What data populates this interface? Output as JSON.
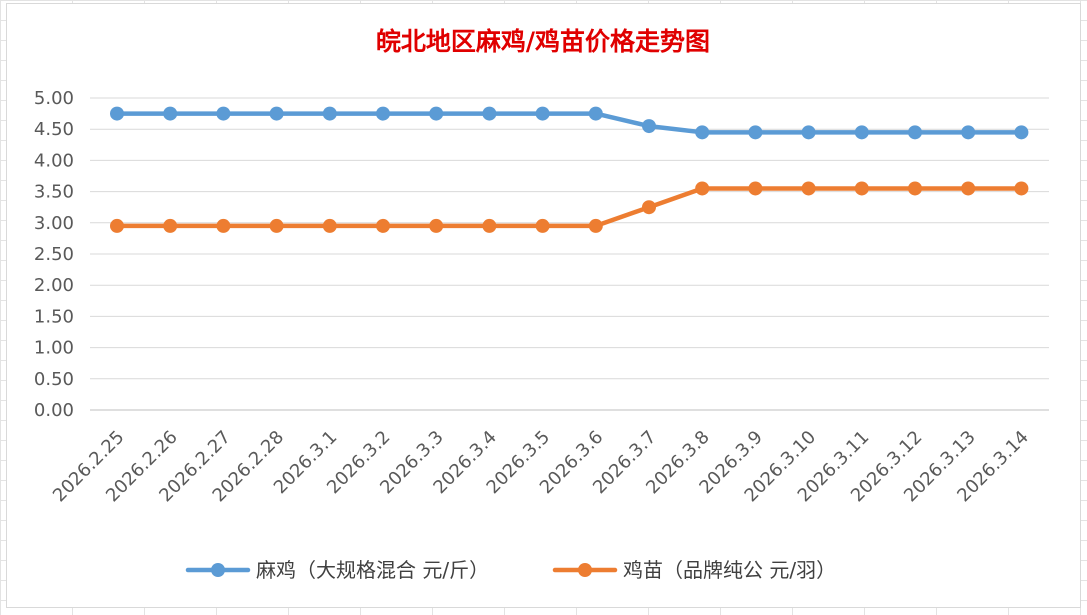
{
  "chart_data": {
    "type": "line",
    "title": "皖北地区麻鸡/鸡苗价格走势图",
    "categories": [
      "2026.2.25",
      "2026.2.26",
      "2026.2.27",
      "2026.2.28",
      "2026.3.1",
      "2026.3.2",
      "2026.3.3",
      "2026.3.4",
      "2026.3.5",
      "2026.3.6",
      "2026.3.7",
      "2026.3.8",
      "2026.3.9",
      "2026.3.10",
      "2026.3.11",
      "2026.3.12",
      "2026.3.13",
      "2026.3.14"
    ],
    "y_ticks": [
      "0.00",
      "0.50",
      "1.00",
      "1.50",
      "2.00",
      "2.50",
      "3.00",
      "3.50",
      "4.00",
      "4.50",
      "5.00"
    ],
    "ylim": [
      0,
      5
    ],
    "grid": "horizontal",
    "legend_position": "bottom",
    "series": [
      {
        "name": "麻鸡（大规格混合 元/斤）",
        "color": "#5b9bd5",
        "values": [
          4.75,
          4.75,
          4.75,
          4.75,
          4.75,
          4.75,
          4.75,
          4.75,
          4.75,
          4.75,
          4.55,
          4.45,
          4.45,
          4.45,
          4.45,
          4.45,
          4.45,
          4.45
        ]
      },
      {
        "name": "鸡苗（品牌纯公 元/羽）",
        "color": "#ed7d31",
        "values": [
          2.95,
          2.95,
          2.95,
          2.95,
          2.95,
          2.95,
          2.95,
          2.95,
          2.95,
          2.95,
          3.25,
          3.55,
          3.55,
          3.55,
          3.55,
          3.55,
          3.55,
          3.55
        ]
      }
    ]
  }
}
